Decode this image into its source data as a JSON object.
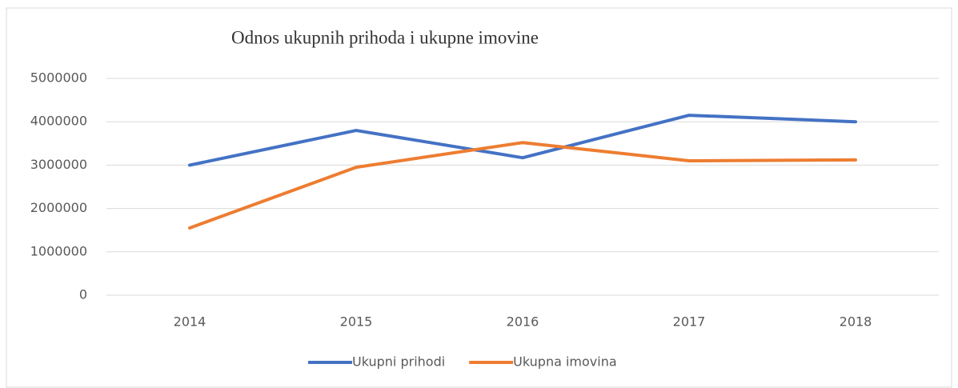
{
  "chart_data": {
    "type": "line",
    "title": "Odnos ukupnih prihoda i ukupne imovine",
    "categories": [
      "2014",
      "2015",
      "2016",
      "2017",
      "2018"
    ],
    "series": [
      {
        "name": "Ukupni prihodi",
        "color": "#4472c4",
        "values": [
          3000000,
          3800000,
          3170000,
          4150000,
          4000000
        ]
      },
      {
        "name": "Ukupna imovina",
        "color": "#ed7d31",
        "values": [
          1550000,
          2950000,
          3520000,
          3100000,
          3120000
        ]
      }
    ],
    "ylim": [
      0,
      5000000
    ],
    "yticks": [
      0,
      1000000,
      2000000,
      3000000,
      4000000,
      5000000
    ],
    "grid": true,
    "legend": "bottom"
  }
}
